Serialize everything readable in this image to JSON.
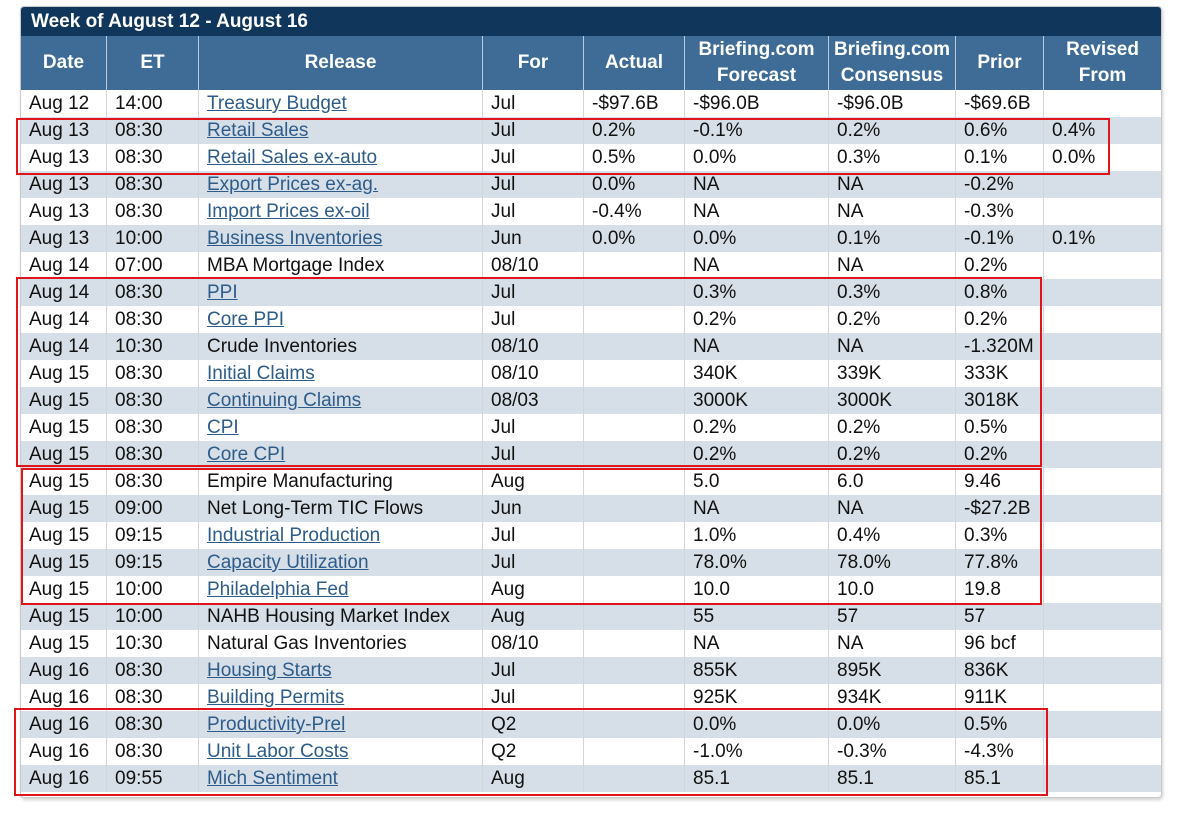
{
  "title": "Week of August 12 - August 16",
  "columns": [
    "Date",
    "ET",
    "Release",
    "For",
    "Actual",
    "Briefing.com Forecast",
    "Briefing.com Consensus",
    "Prior",
    "Revised From"
  ],
  "rows": [
    {
      "date": "Aug 12",
      "et": "14:00",
      "release": "Treasury Budget",
      "link": true,
      "for": "Jul",
      "actual": "-$97.6B",
      "forecast": "-$96.0B",
      "consensus": "-$96.0B",
      "prior": "-$69.6B",
      "revised": ""
    },
    {
      "date": "Aug 13",
      "et": "08:30",
      "release": "Retail Sales",
      "link": true,
      "for": "Jul",
      "actual": "0.2%",
      "forecast": "-0.1%",
      "consensus": "0.2%",
      "prior": "0.6%",
      "revised": "0.4%"
    },
    {
      "date": "Aug 13",
      "et": "08:30",
      "release": "Retail Sales ex-auto",
      "link": true,
      "for": "Jul",
      "actual": "0.5%",
      "forecast": "0.0%",
      "consensus": "0.3%",
      "prior": "0.1%",
      "revised": "0.0%"
    },
    {
      "date": "Aug 13",
      "et": "08:30",
      "release": "Export Prices ex-ag.",
      "link": true,
      "for": "Jul",
      "actual": "0.0%",
      "forecast": "NA",
      "consensus": "NA",
      "prior": "-0.2%",
      "revised": ""
    },
    {
      "date": "Aug 13",
      "et": "08:30",
      "release": "Import Prices ex-oil",
      "link": true,
      "for": "Jul",
      "actual": "-0.4%",
      "forecast": "NA",
      "consensus": "NA",
      "prior": "-0.3%",
      "revised": ""
    },
    {
      "date": "Aug 13",
      "et": "10:00",
      "release": "Business Inventories",
      "link": true,
      "for": "Jun",
      "actual": "0.0%",
      "forecast": "0.0%",
      "consensus": "0.1%",
      "prior": "-0.1%",
      "revised": "0.1%"
    },
    {
      "date": "Aug 14",
      "et": "07:00",
      "release": "MBA Mortgage Index",
      "link": false,
      "for": "08/10",
      "actual": "",
      "forecast": "NA",
      "consensus": "NA",
      "prior": "0.2%",
      "revised": ""
    },
    {
      "date": "Aug 14",
      "et": "08:30",
      "release": "PPI",
      "link": true,
      "for": "Jul",
      "actual": "",
      "forecast": "0.3%",
      "consensus": "0.3%",
      "prior": "0.8%",
      "revised": ""
    },
    {
      "date": "Aug 14",
      "et": "08:30",
      "release": "Core PPI",
      "link": true,
      "for": "Jul",
      "actual": "",
      "forecast": "0.2%",
      "consensus": "0.2%",
      "prior": "0.2%",
      "revised": ""
    },
    {
      "date": "Aug 14",
      "et": "10:30",
      "release": "Crude Inventories",
      "link": false,
      "for": "08/10",
      "actual": "",
      "forecast": "NA",
      "consensus": "NA",
      "prior": "-1.320M",
      "revised": ""
    },
    {
      "date": "Aug 15",
      "et": "08:30",
      "release": "Initial Claims",
      "link": true,
      "for": "08/10",
      "actual": "",
      "forecast": "340K",
      "consensus": "339K",
      "prior": "333K",
      "revised": ""
    },
    {
      "date": "Aug 15",
      "et": "08:30",
      "release": "Continuing Claims",
      "link": true,
      "for": "08/03",
      "actual": "",
      "forecast": "3000K",
      "consensus": "3000K",
      "prior": "3018K",
      "revised": ""
    },
    {
      "date": "Aug 15",
      "et": "08:30",
      "release": "CPI",
      "link": true,
      "for": "Jul",
      "actual": "",
      "forecast": "0.2%",
      "consensus": "0.2%",
      "prior": "0.5%",
      "revised": ""
    },
    {
      "date": "Aug 15",
      "et": "08:30",
      "release": "Core CPI",
      "link": true,
      "for": "Jul",
      "actual": "",
      "forecast": "0.2%",
      "consensus": "0.2%",
      "prior": "0.2%",
      "revised": ""
    },
    {
      "date": "Aug 15",
      "et": "08:30",
      "release": "Empire Manufacturing",
      "link": false,
      "for": "Aug",
      "actual": "",
      "forecast": "5.0",
      "consensus": "6.0",
      "prior": "9.46",
      "revised": ""
    },
    {
      "date": "Aug 15",
      "et": "09:00",
      "release": "Net Long-Term TIC Flows",
      "link": false,
      "for": "Jun",
      "actual": "",
      "forecast": "NA",
      "consensus": "NA",
      "prior": "-$27.2B",
      "revised": ""
    },
    {
      "date": "Aug 15",
      "et": "09:15",
      "release": "Industrial Production",
      "link": true,
      "for": "Jul",
      "actual": "",
      "forecast": "1.0%",
      "consensus": "0.4%",
      "prior": "0.3%",
      "revised": ""
    },
    {
      "date": "Aug 15",
      "et": "09:15",
      "release": "Capacity Utilization",
      "link": true,
      "for": "Jul",
      "actual": "",
      "forecast": "78.0%",
      "consensus": "78.0%",
      "prior": "77.8%",
      "revised": ""
    },
    {
      "date": "Aug 15",
      "et": "10:00",
      "release": "Philadelphia Fed",
      "link": true,
      "for": "Aug",
      "actual": "",
      "forecast": "10.0",
      "consensus": "10.0",
      "prior": "19.8",
      "revised": ""
    },
    {
      "date": "Aug 15",
      "et": "10:00",
      "release": "NAHB Housing Market Index",
      "link": false,
      "for": "Aug",
      "actual": "",
      "forecast": "55",
      "consensus": "57",
      "prior": "57",
      "revised": ""
    },
    {
      "date": "Aug 15",
      "et": "10:30",
      "release": "Natural Gas Inventories",
      "link": false,
      "for": "08/10",
      "actual": "",
      "forecast": "NA",
      "consensus": "NA",
      "prior": "96 bcf",
      "revised": ""
    },
    {
      "date": "Aug 16",
      "et": "08:30",
      "release": "Housing Starts",
      "link": true,
      "for": "Jul",
      "actual": "",
      "forecast": "855K",
      "consensus": "895K",
      "prior": "836K",
      "revised": ""
    },
    {
      "date": "Aug 16",
      "et": "08:30",
      "release": "Building Permits",
      "link": true,
      "for": "Jul",
      "actual": "",
      "forecast": "925K",
      "consensus": "934K",
      "prior": "911K",
      "revised": ""
    },
    {
      "date": "Aug 16",
      "et": "08:30",
      "release": "Productivity-Prel",
      "link": true,
      "for": "Q2",
      "actual": "",
      "forecast": "0.0%",
      "consensus": "0.0%",
      "prior": "0.5%",
      "revised": ""
    },
    {
      "date": "Aug 16",
      "et": "08:30",
      "release": "Unit Labor Costs",
      "link": true,
      "for": "Q2",
      "actual": "",
      "forecast": "-1.0%",
      "consensus": "-0.3%",
      "prior": "-4.3%",
      "revised": ""
    },
    {
      "date": "Aug 16",
      "et": "09:55",
      "release": "Mich Sentiment",
      "link": true,
      "for": "Aug",
      "actual": "",
      "forecast": "85.1",
      "consensus": "85.1",
      "prior": "85.1",
      "revised": ""
    }
  ],
  "colors": {
    "title_bg": "#10365c",
    "header_bg": "#3e6c96",
    "alt_row": "#d6dfe7",
    "link": "#2e5c8a",
    "highlight": "#e0151b"
  }
}
